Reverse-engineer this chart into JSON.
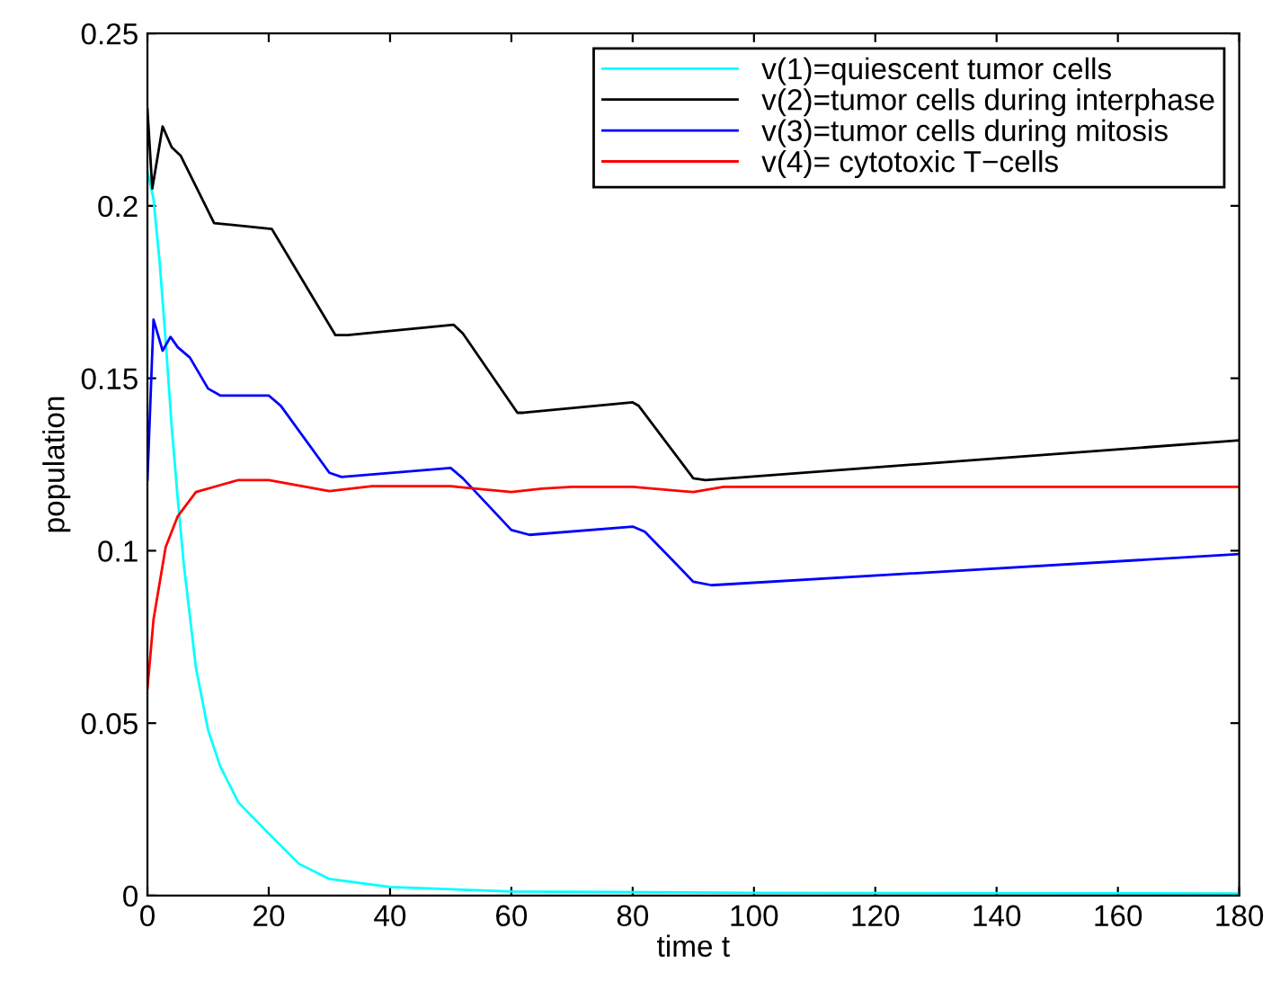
{
  "chart_data": {
    "type": "line",
    "xlabel": "time t",
    "ylabel": "population",
    "xlim": [
      0,
      180
    ],
    "ylim": [
      0,
      0.25
    ],
    "xticks": [
      0,
      20,
      40,
      60,
      80,
      100,
      120,
      140,
      160,
      180
    ],
    "yticks": [
      0,
      0.05,
      0.1,
      0.15,
      0.2,
      0.25
    ],
    "grid": false,
    "legend": "top right",
    "marker": "none",
    "line_style": "solid",
    "series": [
      {
        "name": "v(1)=quiescent tumor cells",
        "color": "#00ffff",
        "x": [
          0,
          1,
          2,
          3,
          4,
          5,
          6,
          8,
          10,
          12,
          15,
          20,
          25,
          30,
          40,
          60,
          100,
          180
        ],
        "values": [
          0.21,
          0.202,
          0.184,
          0.161,
          0.136,
          0.115,
          0.096,
          0.066,
          0.048,
          0.0375,
          0.027,
          0.018,
          0.0092,
          0.0048,
          0.0025,
          0.0012,
          0.0008,
          0.0006
        ]
      },
      {
        "name": "v(2)=tumor cells during interphase",
        "color": "#000000",
        "x": [
          0,
          0.8,
          2.5,
          4,
          5.5,
          11,
          20.5,
          31,
          33,
          50.5,
          52,
          61,
          62,
          80,
          81,
          90,
          92,
          180
        ],
        "values": [
          0.228,
          0.205,
          0.223,
          0.217,
          0.2145,
          0.195,
          0.1933,
          0.1625,
          0.1625,
          0.1655,
          0.163,
          0.14,
          0.14,
          0.143,
          0.142,
          0.121,
          0.1205,
          0.132
        ]
      },
      {
        "name": "v(3)=tumor cells during mitosis",
        "color": "#0000ff",
        "x": [
          0,
          1,
          2.5,
          3.8,
          5,
          7,
          10,
          12,
          20,
          22,
          30,
          32,
          50,
          52,
          60,
          63,
          80,
          82,
          90,
          93,
          180
        ],
        "values": [
          0.1205,
          0.167,
          0.158,
          0.162,
          0.159,
          0.156,
          0.147,
          0.145,
          0.145,
          0.142,
          0.1226,
          0.1214,
          0.124,
          0.121,
          0.106,
          0.1046,
          0.107,
          0.1055,
          0.091,
          0.09,
          0.099
        ]
      },
      {
        "name": "v(4)= cytotoxic T−cells",
        "color": "#ff0000",
        "x": [
          0,
          1,
          3,
          5,
          8,
          15,
          20,
          30,
          37,
          50,
          60,
          65,
          70,
          80,
          90,
          95,
          180
        ],
        "values": [
          0.06,
          0.08,
          0.101,
          0.11,
          0.117,
          0.1205,
          0.1205,
          0.1173,
          0.1187,
          0.1187,
          0.117,
          0.118,
          0.1185,
          0.1185,
          0.117,
          0.1185,
          0.1185
        ]
      }
    ]
  }
}
